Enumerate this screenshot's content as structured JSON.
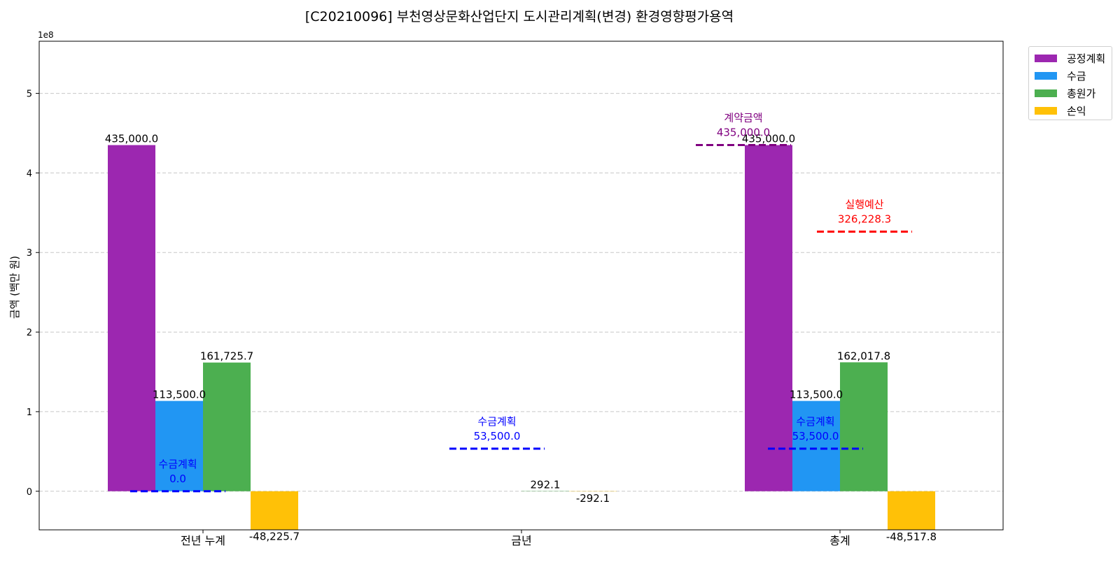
{
  "chart_data": {
    "type": "bar",
    "title": "[C20210096] 부천영상문화산업단지 도시관리계획(변경) 환경영향평가용역",
    "xlabel": "",
    "ylabel": "금액 (백만 원)",
    "y_offset_label": "1e8",
    "ylim": [
      -48517.8,
      565500
    ],
    "y_ticks": [
      {
        "value": 0,
        "label": "0"
      },
      {
        "value": 100000,
        "label": "1"
      },
      {
        "value": 200000,
        "label": "2"
      },
      {
        "value": 300000,
        "label": "3"
      },
      {
        "value": 400000,
        "label": "4"
      },
      {
        "value": 500000,
        "label": "5"
      }
    ],
    "grid": true,
    "legend_position": "outside top-right",
    "categories": [
      "전년 누계",
      "금년",
      "총계"
    ],
    "series": [
      {
        "name": "공정계획",
        "color": "#9C27B0",
        "values": [
          435000.0,
          0,
          435000.0
        ],
        "labels": [
          "435,000.0",
          "",
          "435,000.0"
        ]
      },
      {
        "name": "수금",
        "color": "#2196F3",
        "values": [
          113500.0,
          0,
          113500.0
        ],
        "labels": [
          "113,500.0",
          "",
          "113,500.0"
        ]
      },
      {
        "name": "총원가",
        "color": "#4CAF50",
        "values": [
          161725.7,
          292.1,
          162017.8
        ],
        "labels": [
          "161,725.7",
          "292.1",
          "162,017.8"
        ]
      },
      {
        "name": "손익",
        "color": "#FFC107",
        "values": [
          -48225.7,
          -292.1,
          -48517.8
        ],
        "labels": [
          "-48,225.7",
          "-292.1",
          "-48,517.8"
        ]
      }
    ],
    "reference_lines": [
      {
        "category": "전년 누계",
        "name": "수금계획",
        "value": 0.0,
        "label_title": "수금계획",
        "label_value": "0.0",
        "color": "#0000FF"
      },
      {
        "category": "금년",
        "name": "수금계획",
        "value": 53500.0,
        "label_title": "수금계획",
        "label_value": "53,500.0",
        "color": "#0000FF"
      },
      {
        "category": "총계",
        "name": "수금계획",
        "value": 53500.0,
        "label_title": "수금계획",
        "label_value": "53,500.0",
        "color": "#0000FF"
      },
      {
        "category": "총계",
        "name": "계약금액",
        "value": 435000.0,
        "label_title": "계약금액",
        "label_value": "435,000.0",
        "color": "#800080"
      },
      {
        "category": "총계",
        "name": "실행예산",
        "value": 326228.3,
        "label_title": "실행예산",
        "label_value": "326,228.3",
        "color": "#FF0000"
      }
    ]
  }
}
